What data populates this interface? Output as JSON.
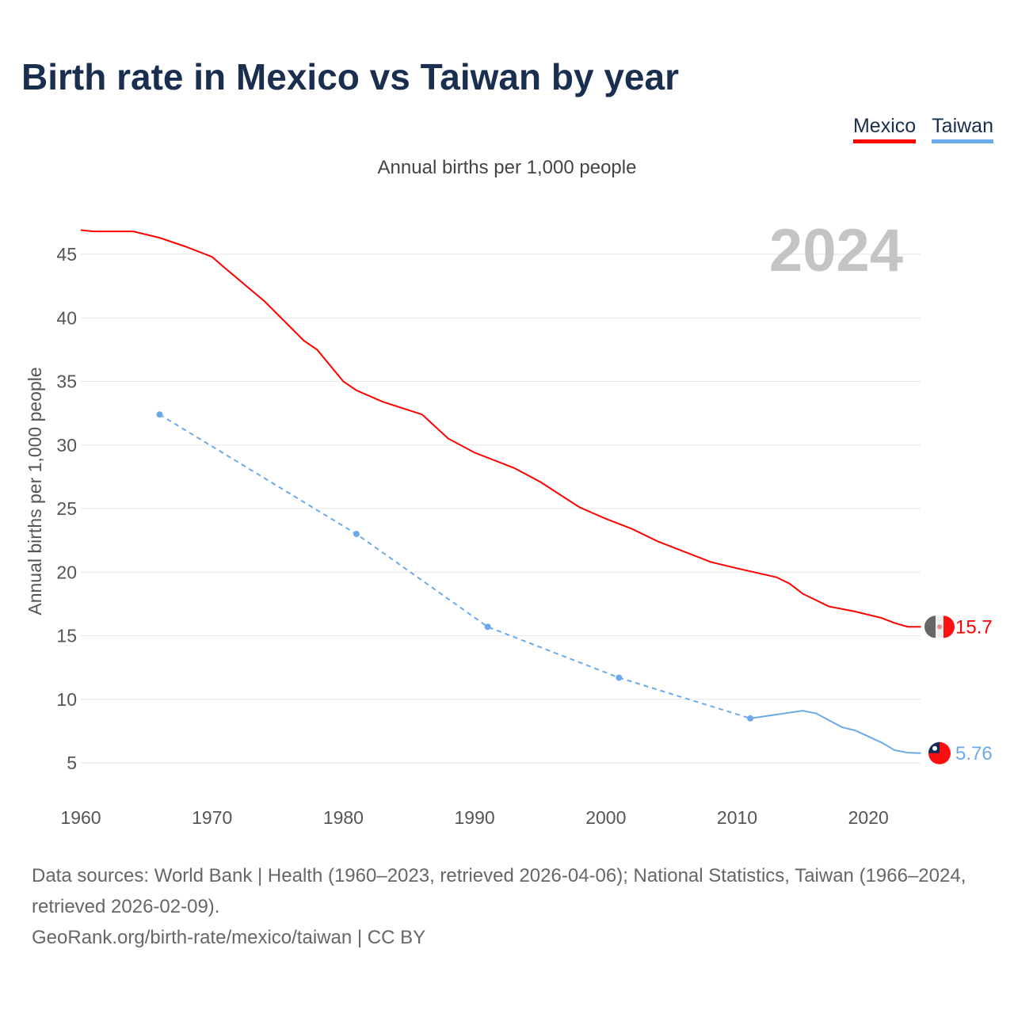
{
  "title": "Birth rate in Mexico vs Taiwan by year",
  "subtitle": "Annual births per 1,000 people",
  "source_line1": "Data sources: World Bank | Health (1960–2023, retrieved 2026-04-06); National Statistics, Taiwan (1966–2024, retrieved 2026-02-09).",
  "source_line2": "GeoRank.org/birth-rate/mexico/taiwan | CC BY",
  "chart_data": {
    "type": "line",
    "title": "Birth rate in Mexico vs Taiwan by year",
    "ylabel": "Annual births per 1,000 people",
    "xlabel": "",
    "year_label": "2024",
    "xlim": [
      1960,
      2025
    ],
    "ylim": [
      2,
      48
    ],
    "xticks": [
      1960,
      1970,
      1980,
      1990,
      2000,
      2010,
      2020
    ],
    "yticks": [
      5,
      10,
      15,
      20,
      25,
      30,
      35,
      40,
      45
    ],
    "grid": true,
    "legend_position": "top-right",
    "series": [
      {
        "name": "Mexico",
        "color": "#ff0000",
        "end_label": "15.7",
        "x": [
          1960,
          1961,
          1964,
          1966,
          1968,
          1970,
          1971,
          1974,
          1977,
          1978,
          1980,
          1981,
          1983,
          1986,
          1988,
          1990,
          1993,
          1995,
          1998,
          2000,
          2002,
          2004,
          2006,
          2008,
          2010,
          2013,
          2014,
          2015,
          2017,
          2019,
          2021,
          2022,
          2023,
          2024
        ],
        "y": [
          46.9,
          46.8,
          46.8,
          46.3,
          45.6,
          44.8,
          43.9,
          41.3,
          38.2,
          37.5,
          35.0,
          34.3,
          33.4,
          32.4,
          30.5,
          29.4,
          28.2,
          27.1,
          25.1,
          24.2,
          23.4,
          22.4,
          21.6,
          20.8,
          20.3,
          19.6,
          19.1,
          18.3,
          17.3,
          16.9,
          16.4,
          16.0,
          15.7,
          15.7
        ]
      },
      {
        "name": "Taiwan",
        "color": "#6aaae8",
        "end_label": "5.76",
        "dashed_x": [
          1966,
          1981,
          1991,
          2001,
          2011
        ],
        "dashed_y": [
          32.4,
          23.0,
          15.7,
          11.7,
          8.5
        ],
        "x": [
          2011,
          2015,
          2016,
          2018,
          2019,
          2021,
          2022,
          2023,
          2024
        ],
        "y": [
          8.5,
          9.1,
          8.9,
          7.8,
          7.55,
          6.6,
          6.0,
          5.8,
          5.76
        ]
      }
    ]
  }
}
